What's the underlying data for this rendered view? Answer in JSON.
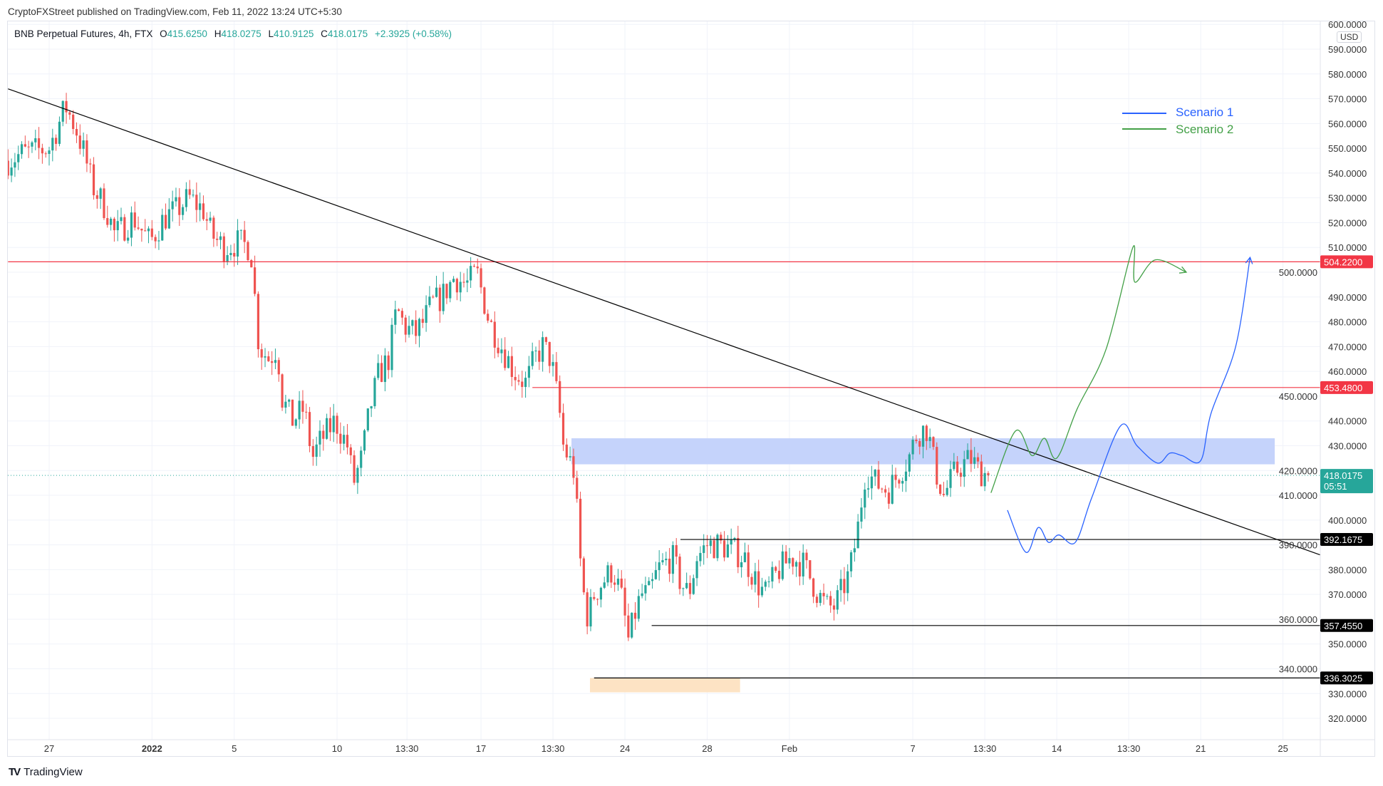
{
  "publisher": "CryptoFXStreet published on TradingView.com, Feb 11, 2022 13:24 UTC+5:30",
  "symbol": {
    "title": "BNB Perpetual Futures, 4h, FTX",
    "open_label": "O",
    "open": "415.6250",
    "high_label": "H",
    "high": "418.0275",
    "low_label": "L",
    "low": "410.9125",
    "close_label": "C",
    "close": "418.0175",
    "change": "+2.3925 (+0.58%)"
  },
  "currency": "USD",
  "brand": "TradingView",
  "colors": {
    "up": "#26a69a",
    "down": "#ef5350",
    "resistance": "#f23645",
    "support": "#000000",
    "scenario1": "#2962ff",
    "scenario2": "#43a047",
    "zone_blue": "#c5d3fb",
    "zone_orange": "#fde3c4"
  },
  "legend": {
    "scenario1": "Scenario 1",
    "scenario2": "Scenario 2"
  },
  "chart_data": {
    "type": "candlestick",
    "interval": "4h",
    "y_range": [
      315,
      600
    ],
    "y_ticks": [
      320,
      330,
      340,
      350,
      360,
      370,
      380,
      390,
      400,
      410,
      420,
      430,
      440,
      450,
      460,
      470,
      480,
      490,
      500,
      510,
      520,
      530,
      540,
      550,
      560,
      570,
      580,
      590,
      600
    ],
    "x_ticks": [
      {
        "label": "27",
        "day": 0,
        "bold": false
      },
      {
        "label": "2022",
        "day": 5,
        "bold": true
      },
      {
        "label": "5",
        "day": 9,
        "bold": false
      },
      {
        "label": "10",
        "day": 14,
        "bold": false
      },
      {
        "label": "13:30",
        "day": 17.4,
        "bold": false
      },
      {
        "label": "17",
        "day": 21,
        "bold": false
      },
      {
        "label": "13:30",
        "day": 24.5,
        "bold": false
      },
      {
        "label": "24",
        "day": 28,
        "bold": false
      },
      {
        "label": "28",
        "day": 32,
        "bold": false
      },
      {
        "label": "Feb",
        "day": 36,
        "bold": false
      },
      {
        "label": "7",
        "day": 42,
        "bold": false
      },
      {
        "label": "13:30",
        "day": 45.5,
        "bold": false
      },
      {
        "label": "14",
        "day": 49,
        "bold": false
      },
      {
        "label": "13:30",
        "day": 52.5,
        "bold": false
      },
      {
        "label": "21",
        "day": 56,
        "bold": false
      },
      {
        "label": "25",
        "day": 60,
        "bold": false
      }
    ],
    "price_path": [
      [
        -2,
        545
      ],
      [
        -1.3,
        548
      ],
      [
        0,
        550
      ],
      [
        0.8,
        567
      ],
      [
        1.3,
        558
      ],
      [
        1.7,
        548
      ],
      [
        2.1,
        535
      ],
      [
        2.8,
        525
      ],
      [
        3.2,
        515
      ],
      [
        4.1,
        522
      ],
      [
        4.9,
        512
      ],
      [
        5.6,
        522
      ],
      [
        6.2,
        525
      ],
      [
        6.8,
        530
      ],
      [
        7.5,
        525
      ],
      [
        7.9,
        515
      ],
      [
        8.5,
        510
      ],
      [
        9.2,
        512
      ],
      [
        9.8,
        510
      ],
      [
        10,
        490
      ],
      [
        10.2,
        470
      ],
      [
        10.7,
        465
      ],
      [
        11.1,
        470
      ],
      [
        11.3,
        450
      ],
      [
        11.8,
        440
      ],
      [
        12.4,
        445
      ],
      [
        12.8,
        425
      ],
      [
        13.2,
        432
      ],
      [
        13.9,
        440
      ],
      [
        14.5,
        430
      ],
      [
        14.8,
        415
      ],
      [
        15.2,
        425
      ],
      [
        15.6,
        445
      ],
      [
        16,
        458
      ],
      [
        16.5,
        465
      ],
      [
        16.9,
        485
      ],
      [
        17.3,
        478
      ],
      [
        17.8,
        475
      ],
      [
        18.2,
        480
      ],
      [
        18.6,
        487
      ],
      [
        19.1,
        490
      ],
      [
        19.7,
        498
      ],
      [
        20.3,
        495
      ],
      [
        20.8,
        500
      ],
      [
        21.1,
        490
      ],
      [
        21.4,
        480
      ],
      [
        22,
        470
      ],
      [
        22.6,
        460
      ],
      [
        23.2,
        455
      ],
      [
        23.6,
        465
      ],
      [
        24,
        470
      ],
      [
        24.4,
        465
      ],
      [
        24.8,
        445
      ],
      [
        25,
        430
      ],
      [
        25.5,
        420
      ],
      [
        25.7,
        400
      ],
      [
        25.9,
        375
      ],
      [
        26.2,
        360
      ],
      [
        26.5,
        370
      ],
      [
        26.9,
        375
      ],
      [
        27.4,
        380
      ],
      [
        27.8,
        370
      ],
      [
        28.2,
        350
      ],
      [
        28.4,
        360
      ],
      [
        28.8,
        370
      ],
      [
        29.2,
        370
      ],
      [
        29.6,
        380
      ],
      [
        30.3,
        385
      ],
      [
        30.7,
        375
      ],
      [
        31.1,
        370
      ],
      [
        31.5,
        385
      ],
      [
        32,
        390
      ],
      [
        32.6,
        390
      ],
      [
        33.2,
        388
      ],
      [
        33.8,
        385
      ],
      [
        34.4,
        375
      ],
      [
        34.8,
        370
      ],
      [
        35.5,
        380
      ],
      [
        36.1,
        385
      ],
      [
        36.7,
        382
      ],
      [
        37.4,
        370
      ],
      [
        37.8,
        365
      ],
      [
        38.2,
        365
      ],
      [
        38.9,
        378
      ],
      [
        39.3,
        395
      ],
      [
        39.7,
        420
      ],
      [
        40.2,
        415
      ],
      [
        40.8,
        412
      ],
      [
        41.4,
        420
      ],
      [
        41.8,
        425
      ],
      [
        42.2,
        435
      ],
      [
        42.7,
        437
      ],
      [
        43.1,
        420
      ],
      [
        43.5,
        410
      ],
      [
        44.1,
        420
      ],
      [
        44.8,
        425
      ],
      [
        45.2,
        420
      ],
      [
        45.7,
        418
      ]
    ],
    "last_close": 418.0175,
    "horizontal_levels": [
      {
        "price": 504.22,
        "label": "504.2200",
        "kind": "resistance",
        "from_day": -2
      },
      {
        "price": 453.48,
        "label": "453.4800",
        "kind": "resistance",
        "from_day": 23.5
      },
      {
        "price": 392.1675,
        "label": "392.1675",
        "kind": "support",
        "from_day": 30.7
      },
      {
        "price": 357.455,
        "label": "357.4550",
        "kind": "support",
        "from_day": 29.3
      },
      {
        "price": 336.3025,
        "label": "336.3025",
        "kind": "support",
        "from_day": 26.5
      }
    ],
    "current_price_tag": {
      "label": "418.0175",
      "countdown": "05:51"
    },
    "trendline": [
      [
        -2,
        574
      ],
      [
        61.8,
        386
      ]
    ],
    "zones": [
      {
        "name": "supply-zone",
        "price_top": 433,
        "price_bottom": 422.5,
        "from_day": 25.4,
        "to_day": 59.6
      },
      {
        "name": "demand-zone",
        "price_top": 336.3,
        "price_bottom": 330.5,
        "from_day": 26.3,
        "to_day": 33.6
      }
    ],
    "scenario1_path": [
      [
        46.6,
        404
      ],
      [
        47.5,
        387
      ],
      [
        48.1,
        397
      ],
      [
        48.6,
        391
      ],
      [
        49.1,
        394
      ],
      [
        49.9,
        391
      ],
      [
        50.7,
        409
      ],
      [
        52.1,
        438
      ],
      [
        52.9,
        430
      ],
      [
        53.9,
        423
      ],
      [
        54.5,
        427
      ],
      [
        55.1,
        426
      ],
      [
        56,
        424
      ],
      [
        56.5,
        443
      ],
      [
        57.7,
        470
      ],
      [
        58.4,
        506
      ]
    ],
    "scenario2_path": [
      [
        45.8,
        411
      ],
      [
        47,
        436
      ],
      [
        47.8,
        426
      ],
      [
        48.4,
        433
      ],
      [
        49,
        425
      ],
      [
        50,
        445
      ],
      [
        51.4,
        469
      ],
      [
        52.7,
        510
      ],
      [
        52.8,
        496
      ],
      [
        53.8,
        505
      ],
      [
        55.3,
        500
      ]
    ]
  }
}
